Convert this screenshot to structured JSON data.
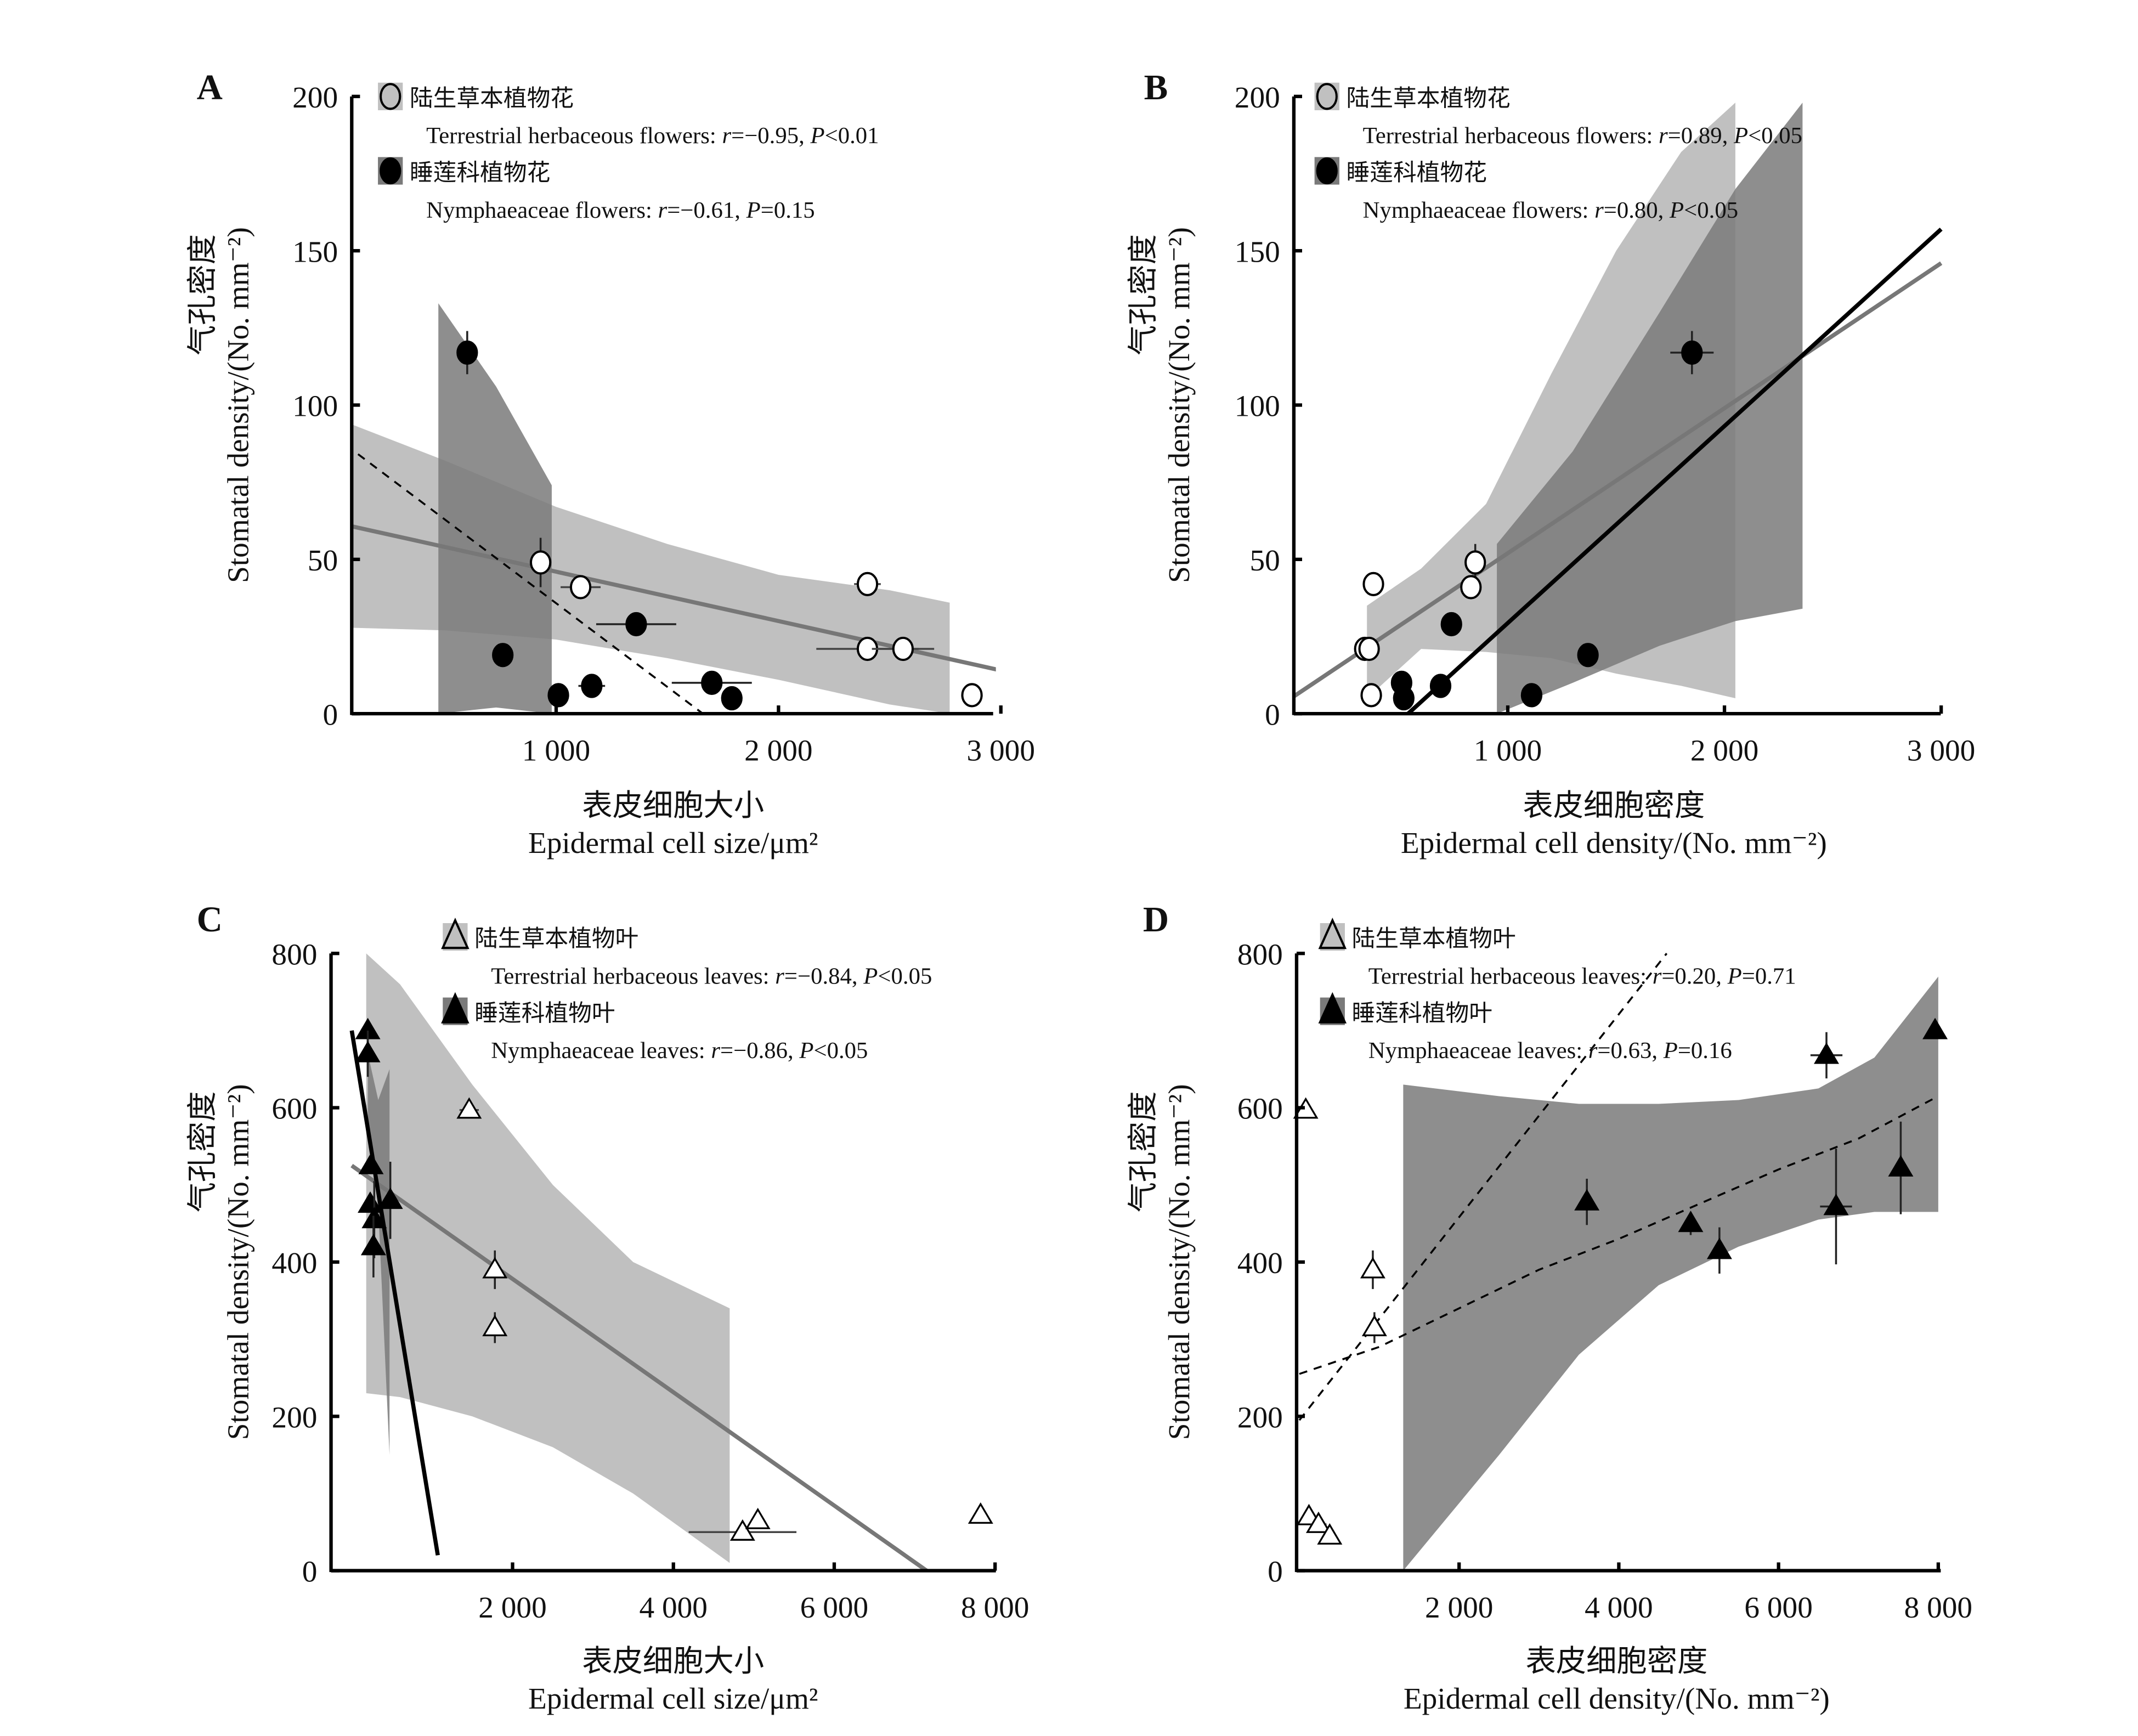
{
  "figure": {
    "panels": [
      "A",
      "B",
      "C",
      "D"
    ]
  },
  "colors": {
    "light_band": "#c0c0c0",
    "dark_band": "#7a7a7a",
    "overlap_band": "#5c5c5c",
    "terrestrial_line": "#777777",
    "nymphaeaceae_line": "#000000",
    "marker_fill_black": "#000000",
    "marker_fill_open": "#ffffff"
  },
  "chart_data": [
    {
      "panel": "A",
      "type": "scatter",
      "title": "",
      "xlabel_cn": "表皮细胞大小",
      "xlabel_en": "Epidermal cell size/μm²",
      "ylabel_cn": "气孔密度",
      "ylabel_en": "Stomatal density/(No. mm⁻²)",
      "xlim": [
        0,
        3000
      ],
      "ylim": [
        0,
        200
      ],
      "xticks": [
        1000,
        2000,
        3000
      ],
      "xtick_labels": [
        "1 000",
        "2 000",
        "3 000"
      ],
      "yticks": [
        0,
        50,
        100,
        150,
        200
      ],
      "ytick_labels": [
        "0",
        "50",
        "100",
        "150",
        "200"
      ],
      "legend": [
        {
          "marker": "open-circle",
          "label_cn": "陆生草本植物花",
          "stat": "Terrestrial herbaceous flowers: r=−0.95, P<0.01",
          "stat_parts": {
            "name": "Terrestrial herbaceous flowers: ",
            "r": "=−0.95, ",
            "p": "<0.01"
          }
        },
        {
          "marker": "filled-circle",
          "label_cn": "睡莲科植物花",
          "stat": "Nymphaeaceae flowers: r=−0.61, P=0.15",
          "stat_parts": {
            "name": "Nymphaeaceae flowers: ",
            "r": "=−0.61, ",
            "p": "=0.15"
          }
        }
      ],
      "series": [
        {
          "name": "Terrestrial herbaceous flowers",
          "marker": "open-circle",
          "points": [
            {
              "x": 930,
              "y": 49,
              "xerr": 40,
              "yerr": 8
            },
            {
              "x": 1110,
              "y": 41,
              "xerr": 90,
              "yerr": 2
            },
            {
              "x": 2400,
              "y": 42,
              "xerr": 60,
              "yerr": 2
            },
            {
              "x": 2400,
              "y": 21,
              "xerr": 230,
              "yerr": 2
            },
            {
              "x": 2560,
              "y": 21,
              "xerr": 140,
              "yerr": 2
            },
            {
              "x": 2870,
              "y": 6,
              "xerr": 0,
              "yerr": 0
            }
          ],
          "fit": {
            "x": [
              0,
              3000
            ],
            "y": [
              62,
              14
            ],
            "style": "solid"
          },
          "ci_band": {
            "x": [
              0,
              500,
              1000,
              1500,
              2000,
              2500,
              2770
            ],
            "upper": [
              96,
              82,
              67,
              55,
              45,
              40,
              36
            ],
            "lower": [
              28,
              27,
              24,
              18,
              11,
              3,
              0
            ]
          }
        },
        {
          "name": "Nymphaeaceae flowers",
          "marker": "filled-circle",
          "points": [
            {
              "x": 600,
              "y": 117,
              "xerr": 0,
              "yerr": 7
            },
            {
              "x": 760,
              "y": 19,
              "xerr": 0,
              "yerr": 0
            },
            {
              "x": 1010,
              "y": 6,
              "xerr": 0,
              "yerr": 0
            },
            {
              "x": 1160,
              "y": 9,
              "xerr": 60,
              "yerr": 0
            },
            {
              "x": 1360,
              "y": 29,
              "xerr": 180,
              "yerr": 3
            },
            {
              "x": 1700,
              "y": 10,
              "xerr": 180,
              "yerr": 0
            },
            {
              "x": 1790,
              "y": 5,
              "xerr": 0,
              "yerr": 0
            }
          ],
          "fit": {
            "x": [
              0,
              1660
            ],
            "y": [
              90,
              0
            ],
            "style": "dashed"
          },
          "ci_band": {
            "x": [
              470,
              730,
              980
            ],
            "upper": [
              133,
              106,
              74
            ],
            "lower": [
              0,
              2,
              0
            ]
          }
        }
      ]
    },
    {
      "panel": "B",
      "type": "scatter",
      "title": "",
      "xlabel_cn": "表皮细胞密度",
      "xlabel_en": "Epidermal cell density/(No. mm⁻²)",
      "ylabel_cn": "气孔密度",
      "ylabel_en": "Stomatal density/(No. mm⁻²)",
      "xlim": [
        0,
        3000
      ],
      "ylim": [
        0,
        200
      ],
      "xticks": [
        1000,
        2000,
        3000
      ],
      "xtick_labels": [
        "1 000",
        "2 000",
        "3 000"
      ],
      "yticks": [
        0,
        50,
        100,
        150,
        200
      ],
      "ytick_labels": [
        "0",
        "50",
        "100",
        "150",
        "200"
      ],
      "legend": [
        {
          "marker": "open-circle",
          "label_cn": "陆生草本植物花",
          "stat": "Terrestrial herbaceous flowers: r=0.89, P<0.05",
          "stat_parts": {
            "name": "Terrestrial herbaceous flowers: ",
            "r": "=0.89, ",
            "p": "<0.05"
          }
        },
        {
          "marker": "filled-circle",
          "label_cn": "睡莲科植物花",
          "stat": "Nymphaeaceae flowers: r=0.80, P<0.05",
          "stat_parts": {
            "name": "Nymphaeaceae flowers: ",
            "r": "=0.80, ",
            "p": "<0.05"
          }
        }
      ],
      "series": [
        {
          "name": "Terrestrial herbaceous flowers",
          "marker": "open-circle",
          "points": [
            {
              "x": 380,
              "y": 42,
              "xerr": 0,
              "yerr": 2
            },
            {
              "x": 340,
              "y": 21,
              "xerr": 20,
              "yerr": 2
            },
            {
              "x": 360,
              "y": 21,
              "xerr": 20,
              "yerr": 2
            },
            {
              "x": 370,
              "y": 6,
              "xerr": 0,
              "yerr": 0
            },
            {
              "x": 850,
              "y": 49,
              "xerr": 40,
              "yerr": 6
            },
            {
              "x": 830,
              "y": 41,
              "xerr": 30,
              "yerr": 3
            }
          ],
          "fit": {
            "x": [
              0,
              3000
            ],
            "y": [
              5,
              146
            ],
            "style": "solid"
          },
          "ci_band": {
            "x": [
              350,
              600,
              900,
              1200,
              1500,
              1800,
              2050
            ],
            "upper": [
              35,
              47,
              68,
              110,
              150,
              182,
              198
            ],
            "lower": [
              5,
              21,
              20,
              18,
              13,
              9,
              5
            ]
          }
        },
        {
          "name": "Nymphaeaceae flowers",
          "marker": "filled-circle",
          "points": [
            {
              "x": 510,
              "y": 10,
              "xerr": 0,
              "yerr": 0
            },
            {
              "x": 520,
              "y": 5,
              "xerr": 0,
              "yerr": 0
            },
            {
              "x": 690,
              "y": 9,
              "xerr": 0,
              "yerr": 0
            },
            {
              "x": 740,
              "y": 29,
              "xerr": 0,
              "yerr": 3
            },
            {
              "x": 1110,
              "y": 6,
              "xerr": 0,
              "yerr": 0
            },
            {
              "x": 1370,
              "y": 19,
              "xerr": 0,
              "yerr": 0
            },
            {
              "x": 1850,
              "y": 117,
              "xerr": 100,
              "yerr": 7
            }
          ],
          "fit": {
            "x": [
              540,
              3000
            ],
            "y": [
              0,
              157
            ],
            "style": "solid"
          },
          "ci_band": {
            "x": [
              950,
              1300,
              1700,
              2050,
              2360
            ],
            "upper": [
              55,
              85,
              130,
              170,
              198
            ],
            "lower": [
              0,
              10,
              22,
              30,
              34
            ]
          }
        }
      ]
    },
    {
      "panel": "C",
      "type": "scatter",
      "title": "",
      "xlabel_cn": "表皮细胞大小",
      "xlabel_en": "Epidermal cell size/μm²",
      "ylabel_cn": "气孔密度",
      "ylabel_en": "Stomatal density/(No. mm⁻²)",
      "xlim": [
        0,
        8000
      ],
      "ylim": [
        0,
        800
      ],
      "xticks": [
        2000,
        4000,
        6000,
        8000
      ],
      "xtick_labels": [
        "2 000",
        "4 000",
        "6 000",
        "8 000"
      ],
      "yticks": [
        0,
        200,
        400,
        600,
        800
      ],
      "ytick_labels": [
        "0",
        "200",
        "400",
        "600",
        "800"
      ],
      "legend": [
        {
          "marker": "open-triangle",
          "label_cn": "陆生草本植物叶",
          "stat": "Terrestrial herbaceous leaves: r=−0.84, P<0.05",
          "stat_parts": {
            "name": "Terrestrial herbaceous leaves: ",
            "r": "=−0.84, ",
            "p": "<0.05"
          }
        },
        {
          "marker": "filled-triangle",
          "label_cn": "睡莲科植物叶",
          "stat": "Nymphaeaceae leaves: r=−0.86, P<0.05",
          "stat_parts": {
            "name": "Nymphaeaceae leaves: ",
            "r": "=−0.86, ",
            "p": "<0.05"
          }
        }
      ],
      "series": [
        {
          "name": "Terrestrial herbaceous leaves",
          "marker": "open-triangle",
          "points": [
            {
              "x": 1460,
              "y": 597,
              "xerr": 120,
              "yerr": 0
            },
            {
              "x": 1780,
              "y": 390,
              "xerr": 0,
              "yerr": 25
            },
            {
              "x": 1780,
              "y": 315,
              "xerr": 0,
              "yerr": 20
            },
            {
              "x": 4860,
              "y": 50,
              "xerr": 670,
              "yerr": 0
            },
            {
              "x": 5050,
              "y": 65,
              "xerr": 0,
              "yerr": 0
            },
            {
              "x": 7820,
              "y": 72,
              "xerr": 0,
              "yerr": 0
            }
          ],
          "fit": {
            "x": [
              0,
              7150
            ],
            "y": [
              525,
              0
            ],
            "style": "solid"
          },
          "ci_band": {
            "x": [
              180,
              600,
              1500,
              2500,
              3500,
              4700
            ],
            "upper": [
              800,
              760,
              630,
              500,
              400,
              340
            ],
            "lower": [
              230,
              225,
              200,
              160,
              100,
              10
            ]
          }
        },
        {
          "name": "Nymphaeaceae leaves",
          "marker": "filled-triangle",
          "points": [
            {
              "x": 200,
              "y": 700,
              "xerr": 0,
              "yerr": 0
            },
            {
              "x": 200,
              "y": 670,
              "xerr": 0,
              "yerr": 30
            },
            {
              "x": 240,
              "y": 525,
              "xerr": 0,
              "yerr": 0
            },
            {
              "x": 230,
              "y": 475,
              "xerr": 0,
              "yerr": 0
            },
            {
              "x": 280,
              "y": 455,
              "xerr": 0,
              "yerr": 50
            },
            {
              "x": 270,
              "y": 420,
              "xerr": 0,
              "yerr": 40
            },
            {
              "x": 480,
              "y": 480,
              "xerr": 0,
              "yerr": 50
            }
          ],
          "fit": {
            "x": [
              0,
              1070
            ],
            "y": [
              700,
              20
            ],
            "style": "solid"
          },
          "ci_band": {
            "x": [
              200,
              330,
              470
            ],
            "upper": [
              670,
              610,
              650
            ],
            "lower": [
              580,
              470,
              150
            ]
          }
        }
      ]
    },
    {
      "panel": "D",
      "type": "scatter",
      "title": "",
      "xlabel_cn": "表皮细胞密度",
      "xlabel_en": "Epidermal cell density/(No. mm⁻²)",
      "ylabel_cn": "气孔密度",
      "ylabel_en": "Stomatal density/(No. mm⁻²)",
      "xlim": [
        0,
        8000
      ],
      "ylim": [
        0,
        800
      ],
      "xticks": [
        2000,
        4000,
        6000,
        8000
      ],
      "xtick_labels": [
        "2 000",
        "4 000",
        "6 000",
        "8 000"
      ],
      "yticks": [
        0,
        200,
        400,
        600,
        800
      ],
      "ytick_labels": [
        "0",
        "200",
        "400",
        "600",
        "800"
      ],
      "legend": [
        {
          "marker": "open-triangle",
          "label_cn": "陆生草本植物叶",
          "stat": "Terrestrial herbaceous leaves: r=0.20, P=0.71",
          "stat_parts": {
            "name": "Terrestrial herbaceous leaves: ",
            "r": "=0.20, ",
            "p": "=0.71"
          }
        },
        {
          "marker": "filled-triangle",
          "label_cn": "睡莲科植物叶",
          "stat": "Nymphaeaceae leaves: r=0.63, P=0.16",
          "stat_parts": {
            "name": "Nymphaeaceae leaves: ",
            "r": "=0.63, ",
            "p": "=0.16"
          }
        }
      ],
      "series": [
        {
          "name": "Terrestrial herbaceous leaves",
          "marker": "open-triangle",
          "points": [
            {
              "x": 80,
              "y": 597,
              "xerr": 0,
              "yerr": 0
            },
            {
              "x": 920,
              "y": 390,
              "xerr": 0,
              "yerr": 25
            },
            {
              "x": 940,
              "y": 315,
              "xerr": 0,
              "yerr": 20
            },
            {
              "x": 120,
              "y": 70,
              "xerr": 0,
              "yerr": 0
            },
            {
              "x": 240,
              "y": 60,
              "xerr": 100,
              "yerr": 0
            },
            {
              "x": 380,
              "y": 45,
              "xerr": 0,
              "yerr": 0
            }
          ],
          "fit": {
            "x": [
              0,
              4600
            ],
            "y": [
              195,
              800
            ],
            "style": "dashed"
          },
          "ci_band": null
        },
        {
          "name": "Nymphaeaceae leaves",
          "marker": "filled-triangle",
          "points": [
            {
              "x": 3600,
              "y": 478,
              "xerr": 0,
              "yerr": 30
            },
            {
              "x": 4900,
              "y": 450,
              "xerr": 0,
              "yerr": 15
            },
            {
              "x": 5260,
              "y": 415,
              "xerr": 0,
              "yerr": 30
            },
            {
              "x": 6600,
              "y": 668,
              "xerr": 200,
              "yerr": 30
            },
            {
              "x": 6720,
              "y": 472,
              "xerr": 200,
              "yerr": 75
            },
            {
              "x": 7530,
              "y": 522,
              "xerr": 0,
              "yerr": 60
            },
            {
              "x": 7960,
              "y": 700,
              "xerr": 0,
              "yerr": 0
            }
          ],
          "fit": {
            "x": [
              0,
              1000,
              2000,
              3000,
              4000,
              5000,
              6000,
              7000,
              8000
            ],
            "y": [
              255,
              290,
              340,
              390,
              430,
              475,
              520,
              560,
              615
            ],
            "style": "dashed"
          },
          "ci_band": {
            "x": [
              1300,
              2500,
              3500,
              4500,
              5500,
              6500,
              7200,
              8000
            ],
            "upper": [
              630,
              615,
              605,
              605,
              610,
              625,
              665,
              770
            ],
            "lower": [
              0,
              150,
              280,
              370,
              420,
              455,
              465,
              465
            ]
          }
        }
      ]
    }
  ]
}
